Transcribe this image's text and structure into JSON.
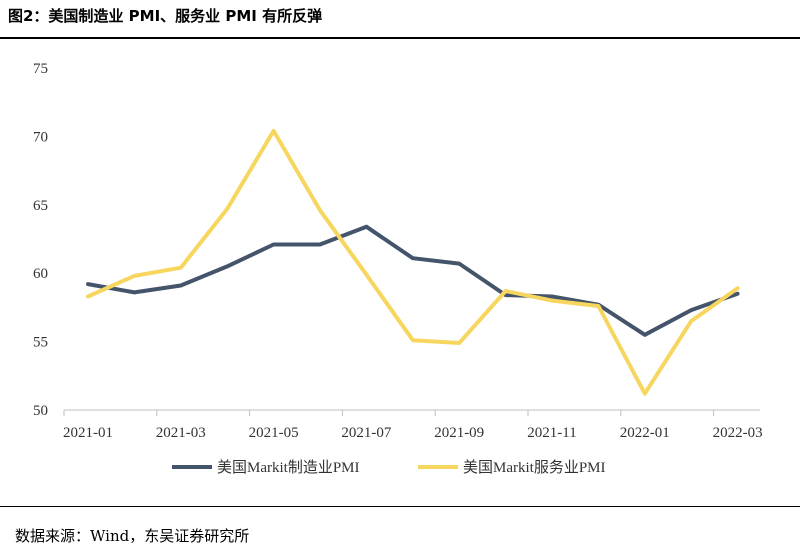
{
  "header": {
    "title": "图2：美国制造业 PMI、服务业 PMI 有所反弹"
  },
  "footer": {
    "source": "数据来源：Wind，东吴证券研究所"
  },
  "chart_data": {
    "type": "line",
    "x": [
      "2021-01",
      "2021-02",
      "2021-03",
      "2021-04",
      "2021-05",
      "2021-06",
      "2021-07",
      "2021-08",
      "2021-09",
      "2021-10",
      "2021-11",
      "2021-12",
      "2022-01",
      "2022-02",
      "2022-03"
    ],
    "x_tick_labels": [
      "2021-01",
      "2021-03",
      "2021-05",
      "2021-07",
      "2021-09",
      "2021-11",
      "2022-01",
      "2022-03"
    ],
    "y_ticks": [
      50,
      55,
      60,
      65,
      70,
      75
    ],
    "ylim": [
      50,
      75
    ],
    "grid": false,
    "legend_position": "bottom",
    "series": [
      {
        "name": "美国Markit制造业PMI",
        "color": "#44546A",
        "values": [
          59.2,
          58.6,
          59.1,
          60.5,
          62.1,
          62.1,
          63.4,
          61.1,
          60.7,
          58.4,
          58.3,
          57.7,
          55.5,
          57.3,
          58.5
        ]
      },
      {
        "name": "美国Markit服务业PMI",
        "color": "#F7D660",
        "values": [
          58.3,
          59.8,
          60.4,
          64.7,
          70.4,
          64.6,
          59.9,
          55.1,
          54.9,
          58.7,
          58.0,
          57.6,
          51.2,
          56.5,
          58.9
        ]
      }
    ]
  }
}
